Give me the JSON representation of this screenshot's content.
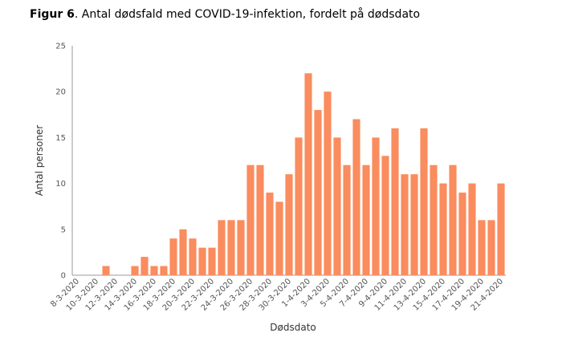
{
  "chart_data": {
    "type": "bar",
    "title_prefix": "Figur 6",
    "title": ". Antal dødsfald med COVID-19-infektion, fordelt på dødsdato",
    "x_label": "Dødsdato",
    "y_label": "Antal personer",
    "categories": [
      "8-3-2020",
      null,
      "10-3-2020",
      null,
      "12-3-2020",
      null,
      "14-3-2020",
      null,
      "16-3-2020",
      null,
      "18-3-2020",
      null,
      "20-3-2020",
      null,
      "22-3-2020",
      null,
      "24-3-2020",
      null,
      "26-3-2020",
      null,
      "28-3-2020",
      null,
      "30-3-2020",
      null,
      "1-4-2020",
      null,
      "3-4-2020",
      null,
      "5-4-2020",
      null,
      "7-4-2020",
      null,
      "9-4-2020",
      null,
      "11-4-2020",
      null,
      "13-4-2020",
      null,
      "15-4-2020",
      null,
      "17-4-2020",
      null,
      "19-4-2020",
      null,
      "21-4-2020"
    ],
    "values": [
      0,
      0,
      0,
      1,
      0,
      0,
      1,
      2,
      1,
      1,
      4,
      5,
      4,
      3,
      3,
      6,
      6,
      6,
      12,
      12,
      9,
      8,
      11,
      15,
      22,
      18,
      20,
      15,
      12,
      17,
      12,
      15,
      13,
      16,
      11,
      11,
      16,
      12,
      10,
      12,
      9,
      10,
      6,
      6,
      10
    ],
    "color": "#fa8c5e",
    "ylim": [
      0,
      25
    ],
    "yticks": [
      0,
      5,
      10,
      15,
      20,
      25
    ],
    "grid": false
  }
}
